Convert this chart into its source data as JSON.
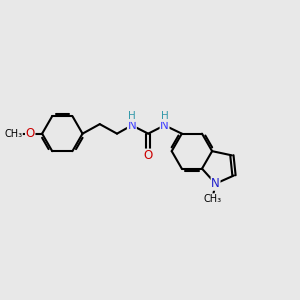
{
  "bg_color": "#e8e8e8",
  "bond_color": "#000000",
  "bond_width": 1.5,
  "col_O": "#cc0000",
  "col_N_urea": "#4040ff",
  "col_N_indole": "#2020cc",
  "col_H": "#3399aa",
  "figsize": [
    3.0,
    3.0
  ],
  "dpi": 100,
  "xlim": [
    0,
    10
  ],
  "ylim": [
    0,
    10
  ]
}
